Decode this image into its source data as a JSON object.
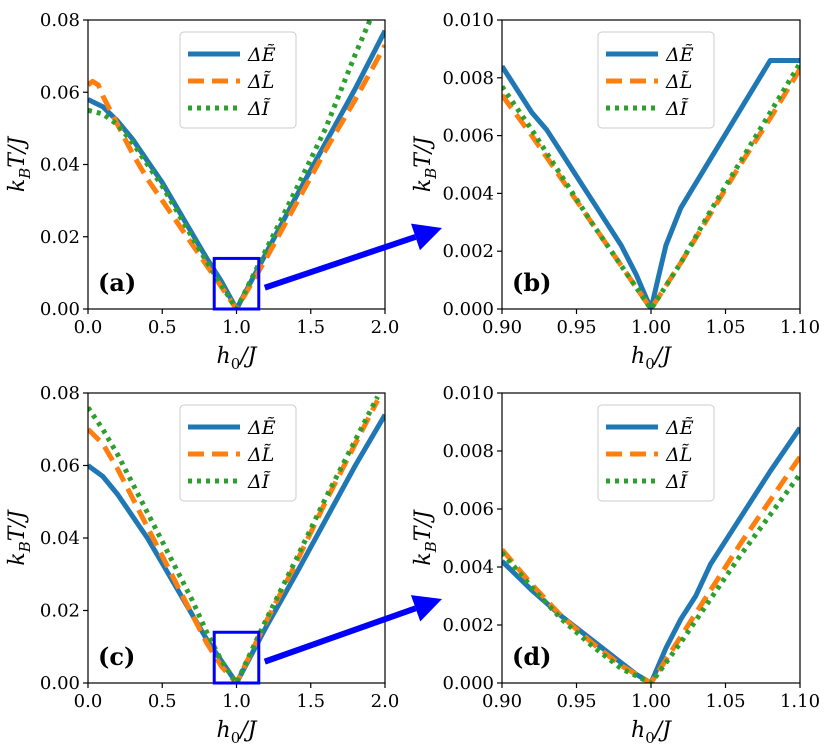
{
  "colors": {
    "E": "#1f77b4",
    "L": "#ff7f0e",
    "I": "#2ca02c",
    "arrow": "#0000ff",
    "zoom_box": "#0000ff"
  },
  "chart_data": [
    {
      "type": "line",
      "panel_label": "(a)",
      "xlabel": "h_0/J",
      "ylabel": "k_BT/J",
      "xlim": [
        0,
        2
      ],
      "ylim": [
        0,
        0.08
      ],
      "xticks": [
        "0.0",
        "0.5",
        "1.0",
        "1.5",
        "2.0"
      ],
      "yticks": [
        "0.00",
        "0.02",
        "0.04",
        "0.06",
        "0.08"
      ],
      "legend": [
        "ΔẼ",
        "ΔL̃",
        "ΔĨ"
      ],
      "zoom_box": [
        0.85,
        1.15,
        0,
        0.014
      ],
      "series": [
        {
          "name": "ΔẼ",
          "x": [
            0,
            0.1,
            0.2,
            0.3,
            0.4,
            0.5,
            0.6,
            0.7,
            0.8,
            0.9,
            1.0,
            1.1,
            1.2,
            1.4,
            1.6,
            1.8,
            2.0
          ],
          "y": [
            0.058,
            0.056,
            0.052,
            0.047,
            0.041,
            0.035,
            0.028,
            0.021,
            0.014,
            0.0075,
            0.0,
            0.0078,
            0.0155,
            0.031,
            0.046,
            0.061,
            0.077
          ]
        },
        {
          "name": "ΔL̃",
          "x": [
            0,
            0.03,
            0.07,
            0.1,
            0.2,
            0.3,
            0.4,
            0.5,
            0.6,
            0.7,
            0.8,
            0.9,
            1.0,
            1.1,
            1.2,
            1.4,
            1.6,
            1.8,
            2.0
          ],
          "y": [
            0.062,
            0.063,
            0.062,
            0.059,
            0.051,
            0.043,
            0.036,
            0.03,
            0.024,
            0.018,
            0.012,
            0.006,
            0.0,
            0.007,
            0.014,
            0.029,
            0.044,
            0.058,
            0.073
          ]
        },
        {
          "name": "ΔĨ",
          "x": [
            0,
            0.1,
            0.2,
            0.3,
            0.4,
            0.5,
            0.6,
            0.7,
            0.8,
            0.9,
            1.0,
            1.2,
            1.4,
            1.6,
            1.8,
            1.9
          ],
          "y": [
            0.055,
            0.054,
            0.051,
            0.046,
            0.04,
            0.034,
            0.027,
            0.02,
            0.013,
            0.0065,
            0.0,
            0.0165,
            0.033,
            0.05,
            0.0705,
            0.08
          ]
        }
      ]
    },
    {
      "type": "line",
      "panel_label": "(b)",
      "xlabel": "h_0/J",
      "ylabel": "k_BT/J",
      "xlim": [
        0.9,
        1.1
      ],
      "ylim": [
        0,
        0.01
      ],
      "xticks": [
        "0.90",
        "0.95",
        "1.00",
        "1.05",
        "1.10"
      ],
      "yticks": [
        "0.000",
        "0.002",
        "0.004",
        "0.006",
        "0.008",
        "0.010"
      ],
      "legend": [
        "ΔẼ",
        "ΔL̃",
        "ΔĨ"
      ],
      "series": [
        {
          "name": "ΔẼ",
          "x": [
            0.9,
            0.91,
            0.92,
            0.93,
            0.94,
            0.95,
            0.96,
            0.97,
            0.98,
            0.99,
            1.0,
            1.005,
            1.01,
            1.02,
            1.04,
            1.06,
            1.08,
            1.1
          ],
          "y": [
            0.0084,
            0.0076,
            0.0068,
            0.0062,
            0.0054,
            0.0046,
            0.0038,
            0.003,
            0.0022,
            0.0012,
            0.0,
            0.0011,
            0.0022,
            0.0035,
            0.0052,
            0.0069,
            0.0086,
            0.0086
          ]
        },
        {
          "name": "ΔL̃",
          "x": [
            0.9,
            0.92,
            0.94,
            0.96,
            0.98,
            1.0,
            1.02,
            1.04,
            1.06,
            1.08,
            1.1
          ],
          "y": [
            0.0074,
            0.006,
            0.0045,
            0.003,
            0.0015,
            0.0,
            0.0016,
            0.0033,
            0.005,
            0.0066,
            0.0083
          ]
        },
        {
          "name": "ΔĨ",
          "x": [
            0.9,
            0.92,
            0.94,
            0.96,
            0.98,
            1.0,
            1.02,
            1.04,
            1.06,
            1.08,
            1.1
          ],
          "y": [
            0.0077,
            0.0062,
            0.0046,
            0.003,
            0.0015,
            0.0,
            0.0016,
            0.0034,
            0.0051,
            0.0068,
            0.0085
          ]
        }
      ]
    },
    {
      "type": "line",
      "panel_label": "(c)",
      "xlabel": "h_0/J",
      "ylabel": "k_BT/J",
      "xlim": [
        0,
        2
      ],
      "ylim": [
        0,
        0.08
      ],
      "xticks": [
        "0.0",
        "0.5",
        "1.0",
        "1.5",
        "2.0"
      ],
      "yticks": [
        "0.00",
        "0.02",
        "0.04",
        "0.06",
        "0.08"
      ],
      "legend": [
        "ΔẼ",
        "ΔL̃",
        "ΔĨ"
      ],
      "zoom_box": [
        0.85,
        1.15,
        0,
        0.014
      ],
      "series": [
        {
          "name": "ΔẼ",
          "x": [
            0,
            0.1,
            0.2,
            0.3,
            0.4,
            0.5,
            0.6,
            0.7,
            0.8,
            0.9,
            1.0,
            1.1,
            1.2,
            1.4,
            1.6,
            1.8,
            2.0
          ],
          "y": [
            0.06,
            0.057,
            0.052,
            0.046,
            0.04,
            0.033,
            0.026,
            0.019,
            0.012,
            0.006,
            0.0,
            0.0078,
            0.0155,
            0.03,
            0.045,
            0.06,
            0.074
          ]
        },
        {
          "name": "ΔL̃",
          "x": [
            0,
            0.05,
            0.1,
            0.2,
            0.3,
            0.4,
            0.5,
            0.6,
            0.7,
            0.8,
            0.9,
            1.0,
            1.1,
            1.2,
            1.4,
            1.6,
            1.8,
            1.95
          ],
          "y": [
            0.07,
            0.068,
            0.066,
            0.059,
            0.051,
            0.043,
            0.035,
            0.027,
            0.019,
            0.011,
            0.0045,
            0.0,
            0.0085,
            0.017,
            0.033,
            0.05,
            0.066,
            0.078
          ]
        },
        {
          "name": "ΔĨ",
          "x": [
            0,
            0.1,
            0.2,
            0.3,
            0.4,
            0.5,
            0.6,
            0.7,
            0.8,
            0.9,
            1.0,
            1.1,
            1.2,
            1.4,
            1.6,
            1.8,
            1.95
          ],
          "y": [
            0.076,
            0.07,
            0.063,
            0.055,
            0.047,
            0.039,
            0.031,
            0.023,
            0.014,
            0.006,
            0.0,
            0.0088,
            0.0175,
            0.034,
            0.051,
            0.067,
            0.079
          ]
        }
      ]
    },
    {
      "type": "line",
      "panel_label": "(d)",
      "xlabel": "h_0/J",
      "ylabel": "k_BT/J",
      "xlim": [
        0.9,
        1.1
      ],
      "ylim": [
        0,
        0.01
      ],
      "xticks": [
        "0.90",
        "0.95",
        "1.00",
        "1.05",
        "1.10"
      ],
      "yticks": [
        "0.000",
        "0.002",
        "0.004",
        "0.006",
        "0.008",
        "0.010"
      ],
      "legend": [
        "ΔẼ",
        "ΔL̃",
        "ΔĨ"
      ],
      "series": [
        {
          "name": "ΔẼ",
          "x": [
            0.9,
            0.92,
            0.94,
            0.96,
            0.98,
            0.99,
            1.0,
            1.01,
            1.02,
            1.03,
            1.04,
            1.06,
            1.08,
            1.1
          ],
          "y": [
            0.0042,
            0.0032,
            0.0023,
            0.0015,
            0.0007,
            0.0003,
            0.0,
            0.0012,
            0.0022,
            0.003,
            0.0041,
            0.0057,
            0.0073,
            0.0088
          ]
        },
        {
          "name": "ΔL̃",
          "x": [
            0.9,
            0.92,
            0.94,
            0.96,
            0.98,
            1.0,
            1.02,
            1.04,
            1.06,
            1.08,
            1.1
          ],
          "y": [
            0.0046,
            0.0034,
            0.0023,
            0.0014,
            0.0006,
            0.0,
            0.0016,
            0.0032,
            0.0048,
            0.0063,
            0.0078
          ]
        },
        {
          "name": "ΔĨ",
          "x": [
            0.9,
            0.92,
            0.94,
            0.96,
            0.98,
            1.0,
            1.02,
            1.04,
            1.06,
            1.08,
            1.1
          ],
          "y": [
            0.0045,
            0.0033,
            0.0022,
            0.0013,
            0.0005,
            0.0,
            0.0014,
            0.0029,
            0.0044,
            0.0058,
            0.0072
          ]
        }
      ]
    }
  ]
}
